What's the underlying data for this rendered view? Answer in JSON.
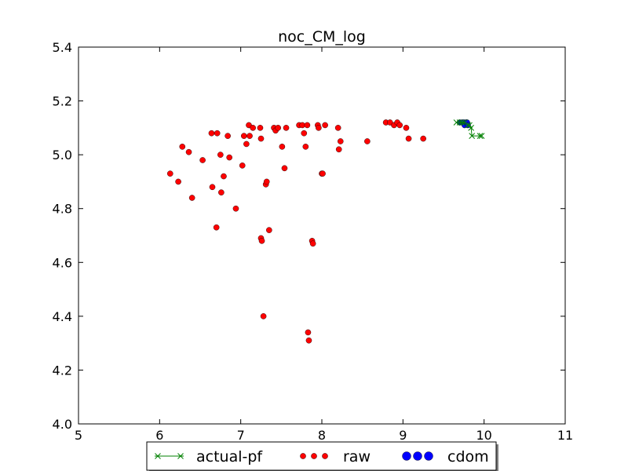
{
  "chart_data": {
    "type": "scatter",
    "title": "noc_CM_log",
    "xlabel": "",
    "ylabel": "",
    "xlim": [
      5,
      11
    ],
    "ylim": [
      4.0,
      5.4
    ],
    "xticks": [
      5,
      6,
      7,
      8,
      9,
      10,
      11
    ],
    "yticks": [
      4.0,
      4.2,
      4.4,
      4.6,
      4.8,
      5.0,
      5.2,
      5.4
    ],
    "xtick_labels": [
      "5",
      "6",
      "7",
      "8",
      "9",
      "10",
      "11"
    ],
    "ytick_labels": [
      "4.0",
      "4.2",
      "4.4",
      "4.6",
      "4.8",
      "5.0",
      "5.2",
      "5.4"
    ],
    "grid": false,
    "legend_position": "bottom-center, outside plot",
    "series": [
      {
        "name": "actual-pf",
        "kind": "line-x-marker",
        "color": "#008000",
        "x": [
          9.66,
          9.7,
          9.73,
          9.76,
          9.8,
          9.82,
          9.84,
          9.85,
          9.95,
          9.97
        ],
        "y": [
          5.12,
          5.12,
          5.12,
          5.12,
          5.11,
          5.11,
          5.1,
          5.07,
          5.07,
          5.07
        ]
      },
      {
        "name": "raw",
        "kind": "scatter",
        "color": "#ff0000",
        "x": [
          6.13,
          6.23,
          6.28,
          6.36,
          6.4,
          6.53,
          6.64,
          6.65,
          6.7,
          6.71,
          6.75,
          6.76,
          6.79,
          6.84,
          6.86,
          6.94,
          7.02,
          7.04,
          7.07,
          7.1,
          7.11,
          7.15,
          7.24,
          7.25,
          7.25,
          7.26,
          7.28,
          7.31,
          7.32,
          7.35,
          7.41,
          7.43,
          7.46,
          7.51,
          7.54,
          7.56,
          7.72,
          7.76,
          7.78,
          7.8,
          7.82,
          7.83,
          7.84,
          7.88,
          7.89,
          7.95,
          7.96,
          8.0,
          8.01,
          8.04,
          8.2,
          8.21,
          8.23,
          8.56,
          8.79,
          8.84,
          8.89,
          8.93,
          8.96,
          9.04,
          9.07,
          9.25
        ],
        "y": [
          4.93,
          4.9,
          5.03,
          5.01,
          4.84,
          4.98,
          5.08,
          4.88,
          4.73,
          5.08,
          5.0,
          4.86,
          4.92,
          5.07,
          4.99,
          4.8,
          4.96,
          5.07,
          5.04,
          5.11,
          5.07,
          5.1,
          5.1,
          5.06,
          4.69,
          4.68,
          4.4,
          4.89,
          4.9,
          4.72,
          5.1,
          5.09,
          5.1,
          5.03,
          4.95,
          5.1,
          5.11,
          5.11,
          5.08,
          5.03,
          5.11,
          4.34,
          4.31,
          4.68,
          4.67,
          5.11,
          5.1,
          4.93,
          4.93,
          5.11,
          5.1,
          5.02,
          5.05,
          5.05,
          5.12,
          5.12,
          5.11,
          5.12,
          5.11,
          5.1,
          5.06,
          5.06
        ]
      },
      {
        "name": "cdom",
        "kind": "scatter",
        "color": "#0000ff",
        "x": [
          9.7,
          9.73,
          9.75,
          9.76,
          9.78,
          9.79,
          9.8
        ],
        "y": [
          5.12,
          5.12,
          5.12,
          5.11,
          5.12,
          5.12,
          5.11
        ]
      }
    ]
  }
}
